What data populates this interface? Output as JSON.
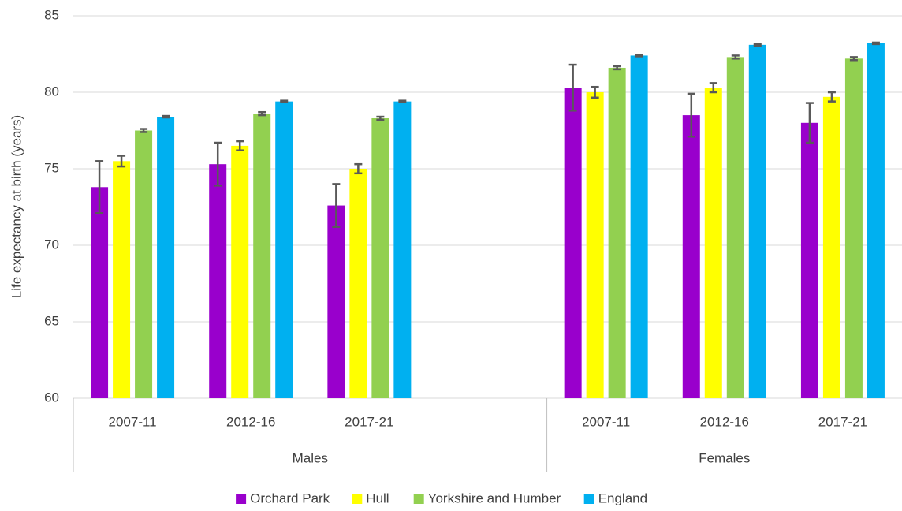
{
  "chart_data": {
    "type": "bar",
    "y_label": "Life expectancy at birth (years)",
    "categories": [
      "2007-11",
      "2012-16",
      "2017-21",
      null,
      "2007-11",
      "2012-16",
      "2017-21"
    ],
    "groups": [
      {
        "name": "Males",
        "count": 4
      },
      {
        "name": "Females",
        "count": 3
      }
    ],
    "series": [
      {
        "name": "Orchard Park",
        "color": "#9900cc",
        "values": [
          73.8,
          75.3,
          72.6,
          null,
          80.3,
          78.5,
          78.0
        ],
        "errors": [
          1.7,
          1.4,
          1.4,
          null,
          1.5,
          1.4,
          1.3
        ]
      },
      {
        "name": "Hull",
        "color": "#ffff00",
        "values": [
          75.5,
          76.5,
          75.0,
          null,
          80.0,
          80.3,
          79.7
        ],
        "errors": [
          0.35,
          0.3,
          0.3,
          null,
          0.35,
          0.3,
          0.3
        ]
      },
      {
        "name": "Yorkshire and Humber",
        "color": "#92d050",
        "values": [
          77.5,
          78.6,
          78.3,
          null,
          81.6,
          82.3,
          82.2
        ],
        "errors": [
          0.1,
          0.1,
          0.1,
          null,
          0.1,
          0.1,
          0.1
        ]
      },
      {
        "name": "England",
        "color": "#00b0f0",
        "values": [
          78.4,
          79.4,
          79.4,
          null,
          82.4,
          83.1,
          83.2
        ],
        "errors": [
          0.05,
          0.05,
          0.05,
          null,
          0.05,
          0.05,
          0.05
        ]
      }
    ],
    "ylim": [
      60,
      85
    ],
    "yticks": [
      60,
      65,
      70,
      75,
      80,
      85
    ],
    "grid": true,
    "legend": "bottom"
  }
}
